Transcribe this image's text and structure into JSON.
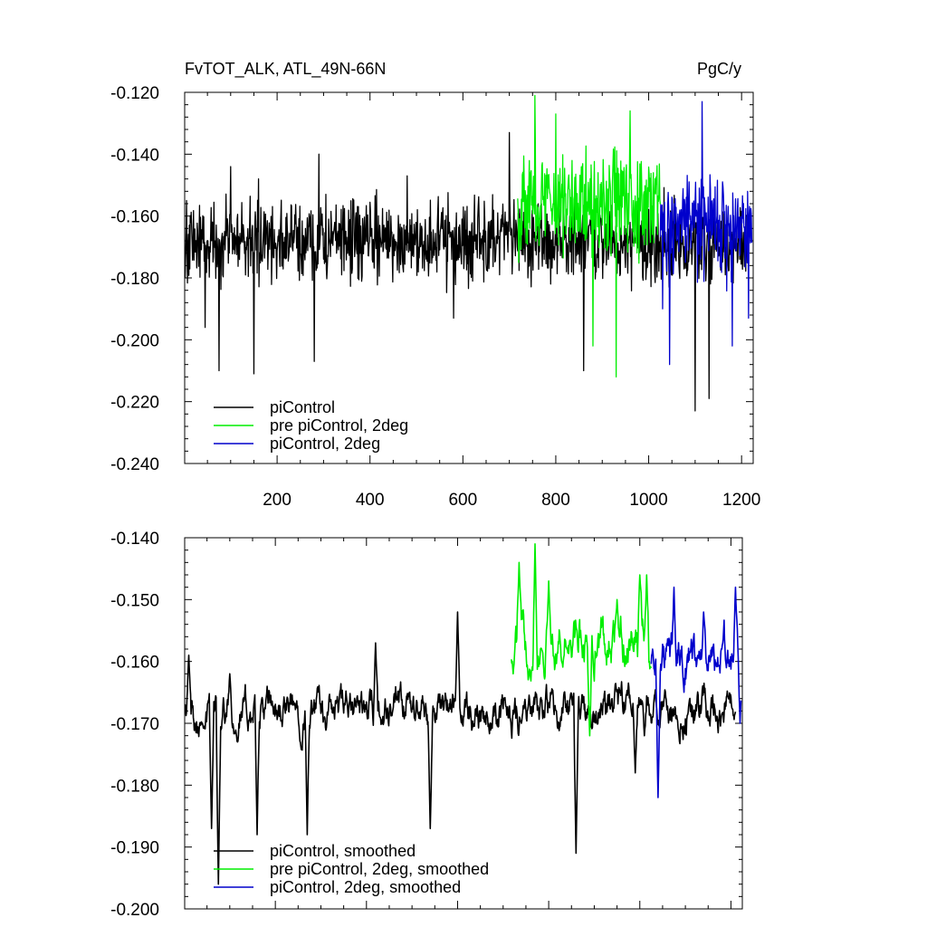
{
  "figure": {
    "title_left": "FvTOT_ALK, ATL_49N-66N",
    "title_right": "PgC/y"
  },
  "chart_data": [
    {
      "type": "line",
      "x_axis_tick_labels": [
        "200",
        "400",
        "600",
        "800",
        "1000",
        "1200"
      ],
      "xlim": [
        1,
        1225
      ],
      "ylim": [
        -0.24,
        -0.12
      ],
      "y_tick_labels": [
        "-0.120",
        "-0.140",
        "-0.160",
        "-0.180",
        "-0.200",
        "-0.220",
        "-0.240"
      ],
      "legend_placement": "bottom-left",
      "series": [
        {
          "name": "piControl",
          "color": "#000000",
          "x_range": [
            1,
            1210
          ],
          "mean": -0.168,
          "amplitude": 0.012,
          "anchors": [
            {
              "x": 2,
              "y": -0.18
            },
            {
              "x": 5,
              "y": -0.155
            },
            {
              "x": 45,
              "y": -0.196
            },
            {
              "x": 75,
              "y": -0.21
            },
            {
              "x": 100,
              "y": -0.144
            },
            {
              "x": 150,
              "y": -0.211
            },
            {
              "x": 160,
              "y": -0.148
            },
            {
              "x": 280,
              "y": -0.207
            },
            {
              "x": 290,
              "y": -0.14
            },
            {
              "x": 480,
              "y": -0.147
            },
            {
              "x": 580,
              "y": -0.193
            },
            {
              "x": 700,
              "y": -0.133
            },
            {
              "x": 860,
              "y": -0.21
            },
            {
              "x": 1100,
              "y": -0.223
            },
            {
              "x": 1130,
              "y": -0.219
            }
          ]
        },
        {
          "name": "pre piControl, 2deg",
          "color": "#00ee00",
          "x_range": [
            718,
            1025
          ],
          "mean": -0.155,
          "amplitude": 0.015,
          "anchors": [
            {
              "x": 720,
              "y": -0.175
            },
            {
              "x": 755,
              "y": -0.121
            },
            {
              "x": 800,
              "y": -0.127
            },
            {
              "x": 880,
              "y": -0.202
            },
            {
              "x": 930,
              "y": -0.212
            },
            {
              "x": 960,
              "y": -0.126
            },
            {
              "x": 1010,
              "y": -0.146
            }
          ]
        },
        {
          "name": "piControl, 2deg",
          "color": "#0000cc",
          "x_range": [
            1025,
            1222
          ],
          "mean": -0.163,
          "amplitude": 0.014,
          "anchors": [
            {
              "x": 1030,
              "y": -0.19
            },
            {
              "x": 1045,
              "y": -0.208
            },
            {
              "x": 1115,
              "y": -0.123
            },
            {
              "x": 1180,
              "y": -0.202
            },
            {
              "x": 1215,
              "y": -0.193
            }
          ]
        }
      ]
    },
    {
      "type": "line",
      "x_axis_tick_labels": [],
      "xlim": [
        1,
        1225
      ],
      "ylim": [
        -0.2,
        -0.14
      ],
      "y_tick_labels": [
        "-0.140",
        "-0.150",
        "-0.160",
        "-0.170",
        "-0.180",
        "-0.190",
        "-0.200"
      ],
      "legend_placement": "bottom-left",
      "series": [
        {
          "name": "piControl, smoothed",
          "color": "#000000",
          "x_range": [
            1,
            1210
          ],
          "mean": -0.168,
          "amplitude": 0.004,
          "anchors": [
            {
              "x": 2,
              "y": -0.167
            },
            {
              "x": 10,
              "y": -0.159
            },
            {
              "x": 40,
              "y": -0.17
            },
            {
              "x": 60,
              "y": -0.187
            },
            {
              "x": 75,
              "y": -0.196
            },
            {
              "x": 100,
              "y": -0.162
            },
            {
              "x": 160,
              "y": -0.188
            },
            {
              "x": 270,
              "y": -0.188
            },
            {
              "x": 420,
              "y": -0.157
            },
            {
              "x": 540,
              "y": -0.187
            },
            {
              "x": 600,
              "y": -0.152
            },
            {
              "x": 740,
              "y": -0.17
            },
            {
              "x": 860,
              "y": -0.191
            },
            {
              "x": 990,
              "y": -0.178
            },
            {
              "x": 1010,
              "y": -0.172
            }
          ]
        },
        {
          "name": "pre piControl, 2deg, smoothed",
          "color": "#00ee00",
          "x_range": [
            718,
            1025
          ],
          "mean": -0.157,
          "amplitude": 0.005,
          "anchors": [
            {
              "x": 722,
              "y": -0.162
            },
            {
              "x": 735,
              "y": -0.144
            },
            {
              "x": 770,
              "y": -0.141
            },
            {
              "x": 800,
              "y": -0.147
            },
            {
              "x": 840,
              "y": -0.158
            },
            {
              "x": 890,
              "y": -0.172
            },
            {
              "x": 950,
              "y": -0.15
            },
            {
              "x": 1000,
              "y": -0.146
            },
            {
              "x": 1015,
              "y": -0.146
            }
          ]
        },
        {
          "name": "piControl, 2deg, smoothed",
          "color": "#0000cc",
          "x_range": [
            1025,
            1222
          ],
          "mean": -0.16,
          "amplitude": 0.005,
          "anchors": [
            {
              "x": 1028,
              "y": -0.158
            },
            {
              "x": 1040,
              "y": -0.182
            },
            {
              "x": 1075,
              "y": -0.148
            },
            {
              "x": 1140,
              "y": -0.152
            },
            {
              "x": 1180,
              "y": -0.158
            },
            {
              "x": 1210,
              "y": -0.148
            },
            {
              "x": 1220,
              "y": -0.17
            }
          ]
        }
      ]
    }
  ]
}
